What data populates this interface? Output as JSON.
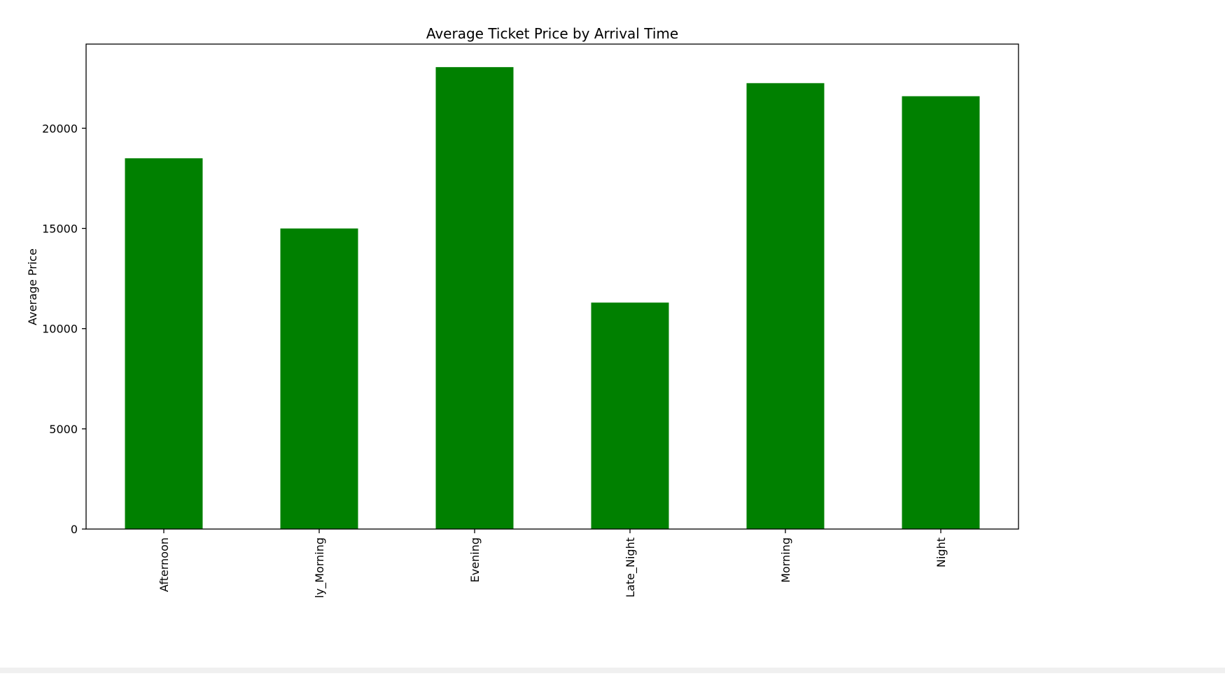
{
  "chart_data": {
    "type": "bar",
    "title": "Average Ticket Price by Arrival Time",
    "xlabel": "",
    "ylabel": "Average Price",
    "categories": [
      "Afternoon",
      "Early_Morning",
      "Evening",
      "Late_Night",
      "Morning",
      "Night"
    ],
    "category_tick_labels": [
      "Afternoon",
      "ly_Morning",
      "Evening",
      "Late_Night",
      "Morning",
      "Night"
    ],
    "values": [
      18500,
      15000,
      23050,
      11300,
      22250,
      21600
    ],
    "ylim": [
      0,
      24200
    ],
    "yticks": [
      0,
      5000,
      10000,
      15000,
      20000
    ],
    "ytick_labels": [
      "0",
      "5000",
      "10000",
      "15000",
      "20000"
    ],
    "bar_color": "#008000",
    "grid": false,
    "legend": "none"
  }
}
